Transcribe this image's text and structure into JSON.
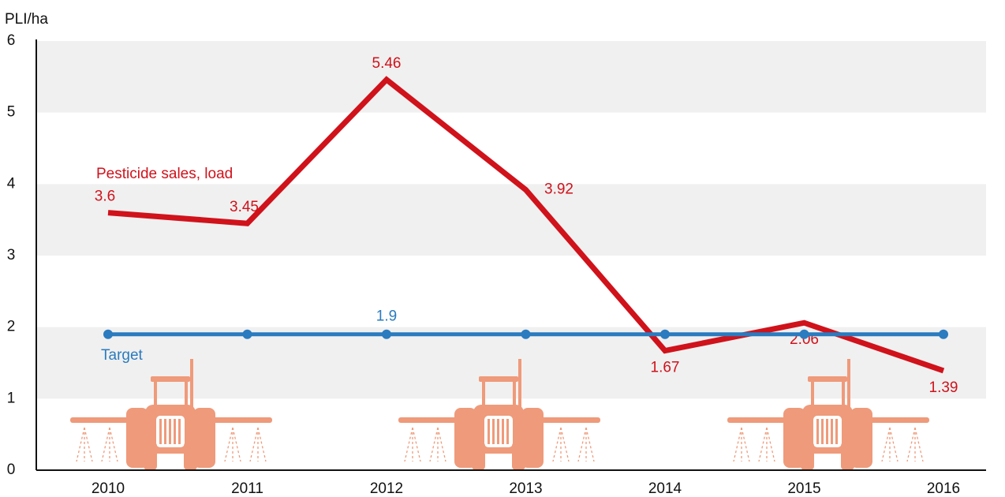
{
  "chart_data": {
    "type": "line",
    "y_axis_label": "PLI/ha",
    "categories": [
      "2010",
      "2011",
      "2012",
      "2013",
      "2014",
      "2015",
      "2016"
    ],
    "series": [
      {
        "name": "Pesticide sales, load",
        "color": "#d0121b",
        "markers": false,
        "values": [
          3.6,
          3.45,
          5.46,
          3.92,
          1.67,
          2.06,
          1.39
        ],
        "labeled_points": [
          0,
          1,
          2,
          3,
          4,
          5,
          6
        ]
      },
      {
        "name": "Target",
        "color": "#2a7bbf",
        "markers": true,
        "values": [
          1.9,
          1.9,
          1.9,
          1.9,
          1.9,
          1.9,
          1.9
        ],
        "labeled_points": [
          2
        ]
      }
    ],
    "ylim": [
      0,
      6
    ],
    "yticks": [
      0,
      1,
      2,
      3,
      4,
      5,
      6
    ],
    "grid": "bands",
    "band_color": "#f0f0f0"
  }
}
